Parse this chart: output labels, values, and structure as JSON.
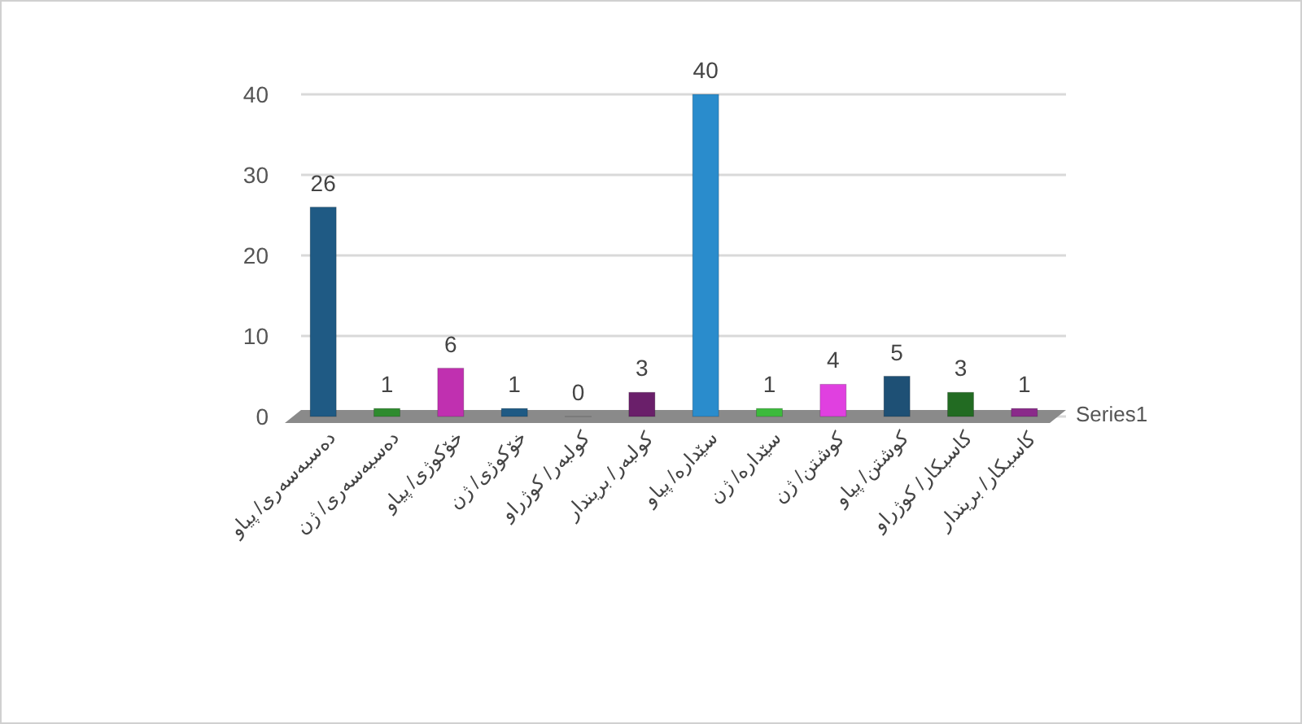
{
  "chart_data": {
    "type": "bar",
    "categories": [
      "دەسبەسەری/ پیاو",
      "دەسبەسەری/ ژن",
      "خۆکوژی/ پیاو",
      "خۆکوژی/ ژن",
      "کولبەر/ کوژراو",
      "کولبەر/ بریندار",
      "سێدارە/ پیاو",
      "سێدارە/ ژن",
      "کوشتن/ ژن",
      "کوشتن/ پیاو",
      "کاسبکار/ کوژراو",
      "کاسبکار/ بریندار"
    ],
    "series": [
      {
        "name": "Series1",
        "colors": [
          "#1f5a84",
          "#2e8b2e",
          "#c030b0",
          "#1f5a84",
          "#111111",
          "#6a1f6a",
          "#2a8ccc",
          "#3cba3c",
          "#e040e0",
          "#1e5075",
          "#226b22",
          "#8a2a8a"
        ],
        "values": [
          26,
          1,
          6,
          1,
          0,
          3,
          40,
          1,
          4,
          5,
          3,
          1
        ]
      }
    ],
    "ylim": [
      0,
      40
    ],
    "yticks": [
      0,
      10,
      20,
      30,
      40
    ],
    "grid": "y",
    "data_labels": true
  }
}
